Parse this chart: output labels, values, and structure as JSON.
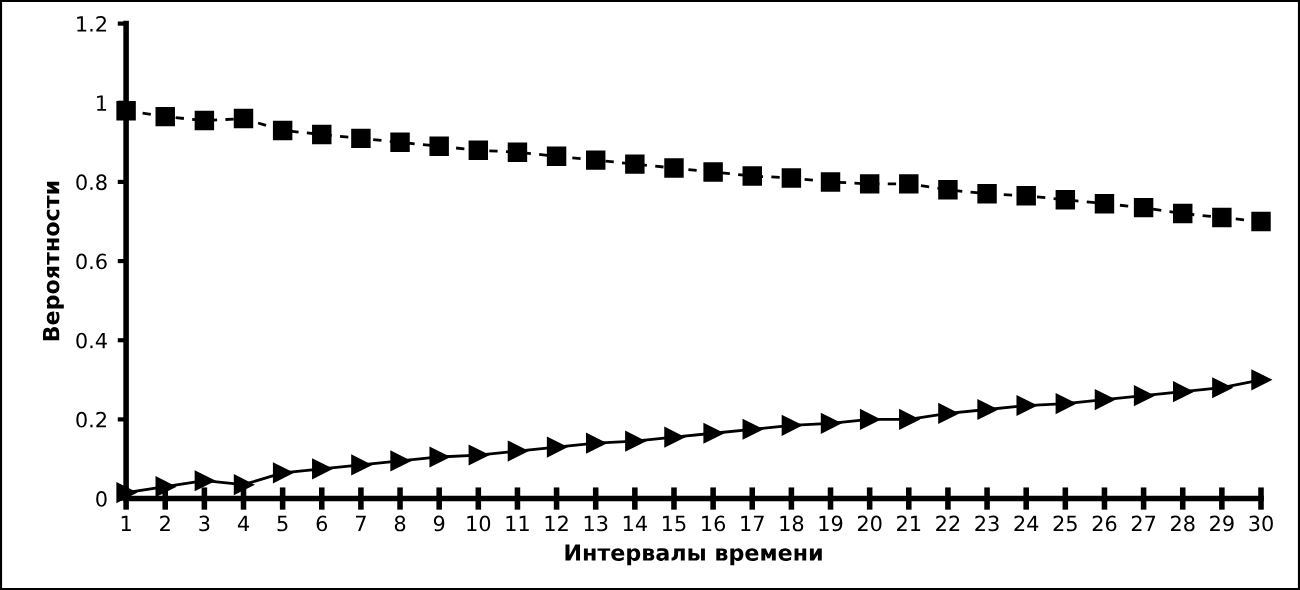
{
  "chart_data": {
    "type": "line",
    "xlabel": "Интервалы времени",
    "ylabel": "Вероятности",
    "categories": [
      "1",
      "2",
      "3",
      "4",
      "5",
      "6",
      "7",
      "8",
      "9",
      "10",
      "11",
      "12",
      "13",
      "14",
      "15",
      "16",
      "17",
      "18",
      "19",
      "20",
      "21",
      "22",
      "23",
      "24",
      "25",
      "26",
      "27",
      "28",
      "29",
      "30"
    ],
    "series": [
      {
        "color": "#000000",
        "marker": "square",
        "line_style": "dashed",
        "values": [
          0.98,
          0.965,
          0.955,
          0.96,
          0.93,
          0.92,
          0.91,
          0.9,
          0.89,
          0.88,
          0.875,
          0.865,
          0.855,
          0.845,
          0.835,
          0.825,
          0.815,
          0.81,
          0.8,
          0.795,
          0.795,
          0.78,
          0.77,
          0.765,
          0.755,
          0.745,
          0.735,
          0.72,
          0.71,
          0.7
        ]
      },
      {
        "color": "#000000",
        "marker": "triangle",
        "line_style": "solid",
        "values": [
          0.015,
          0.03,
          0.045,
          0.035,
          0.065,
          0.075,
          0.085,
          0.095,
          0.105,
          0.11,
          0.12,
          0.13,
          0.14,
          0.145,
          0.155,
          0.165,
          0.175,
          0.185,
          0.19,
          0.2,
          0.2,
          0.215,
          0.225,
          0.235,
          0.24,
          0.25,
          0.26,
          0.27,
          0.28,
          0.3
        ]
      }
    ],
    "ylim": [
      0,
      1.2
    ],
    "yticks": [
      0,
      0.2,
      0.4,
      0.6,
      0.8,
      1,
      1.2
    ],
    "grid": false,
    "legend": false
  }
}
